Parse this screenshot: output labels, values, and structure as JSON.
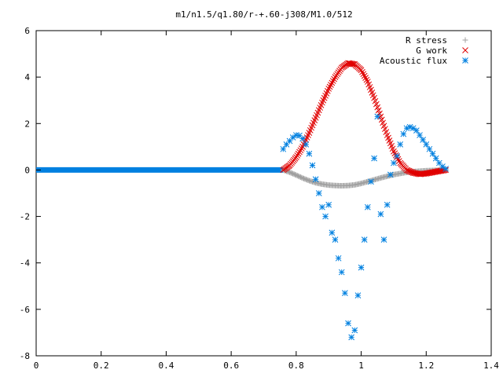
{
  "chart_data": {
    "type": "scatter",
    "title": "m1/n1.5/q1.80/r-+.60-j308/M1.0/512",
    "xlabel": "",
    "ylabel": "",
    "xlim": [
      0,
      1.4
    ],
    "ylim": [
      -8,
      6
    ],
    "x_ticks": [
      "0",
      "0.2",
      "0.4",
      "0.6",
      "0.8",
      "1",
      "1.2",
      "1.4"
    ],
    "y_ticks": [
      "-8",
      "-6",
      "-4",
      "-2",
      "0",
      "2",
      "4",
      "6"
    ],
    "grid": false,
    "legend_position": "top-right",
    "series": [
      {
        "name": "R stress",
        "marker": "plus",
        "color": "#a0a0a0",
        "x": [
          0.76,
          0.78,
          0.8,
          0.82,
          0.84,
          0.86,
          0.88,
          0.9,
          0.92,
          0.94,
          0.96,
          0.98,
          1.0,
          1.02,
          1.04,
          1.06,
          1.08,
          1.1,
          1.12,
          1.14,
          1.16,
          1.18,
          1.2,
          1.22,
          1.24,
          1.26
        ],
        "y": [
          0.0,
          -0.1,
          -0.22,
          -0.35,
          -0.46,
          -0.55,
          -0.61,
          -0.65,
          -0.67,
          -0.68,
          -0.67,
          -0.64,
          -0.58,
          -0.5,
          -0.42,
          -0.34,
          -0.27,
          -0.2,
          -0.15,
          -0.1,
          -0.07,
          -0.05,
          -0.03,
          -0.02,
          -0.01,
          0.0
        ]
      },
      {
        "name": "G work",
        "marker": "cross",
        "color": "#e00000",
        "x": [
          0.76,
          0.78,
          0.8,
          0.82,
          0.84,
          0.86,
          0.88,
          0.9,
          0.92,
          0.94,
          0.96,
          0.98,
          1.0,
          1.02,
          1.04,
          1.06,
          1.08,
          1.1,
          1.12,
          1.14,
          1.16,
          1.18,
          1.2,
          1.22,
          1.24,
          1.26
        ],
        "y": [
          0.0,
          0.2,
          0.55,
          1.0,
          1.6,
          2.25,
          2.9,
          3.5,
          4.0,
          4.4,
          4.6,
          4.55,
          4.3,
          3.8,
          3.1,
          2.3,
          1.5,
          0.8,
          0.3,
          0.0,
          -0.12,
          -0.18,
          -0.15,
          -0.1,
          -0.05,
          0.0
        ]
      },
      {
        "name": "Acoustic flux",
        "marker": "star",
        "color": "#0080e0",
        "x": [
          0.76,
          0.77,
          0.78,
          0.79,
          0.8,
          0.81,
          0.82,
          0.83,
          0.84,
          0.85,
          0.86,
          0.87,
          0.88,
          0.89,
          0.9,
          0.91,
          0.92,
          0.93,
          0.94,
          0.95,
          0.96,
          0.97,
          0.98,
          0.99,
          1.0,
          1.01,
          1.02,
          1.03,
          1.04,
          1.05,
          1.06,
          1.07,
          1.08,
          1.09,
          1.1,
          1.11,
          1.12,
          1.13,
          1.14,
          1.15,
          1.16,
          1.17,
          1.18,
          1.19,
          1.2,
          1.21,
          1.22,
          1.23,
          1.24,
          1.25,
          1.26
        ],
        "y": [
          0.9,
          1.1,
          1.25,
          1.4,
          1.5,
          1.48,
          1.35,
          1.1,
          0.7,
          0.2,
          -0.4,
          -1.0,
          -1.6,
          -2.0,
          -1.5,
          -2.7,
          -3.0,
          -3.8,
          -4.4,
          -5.3,
          -6.6,
          -7.2,
          -6.9,
          -5.4,
          -4.2,
          -3.0,
          -1.6,
          -0.5,
          0.5,
          2.3,
          -1.9,
          -3.0,
          -1.5,
          -0.2,
          0.3,
          0.6,
          1.1,
          1.55,
          1.8,
          1.85,
          1.8,
          1.7,
          1.5,
          1.3,
          1.1,
          0.9,
          0.7,
          0.5,
          0.3,
          0.15,
          0.05
        ]
      }
    ]
  }
}
